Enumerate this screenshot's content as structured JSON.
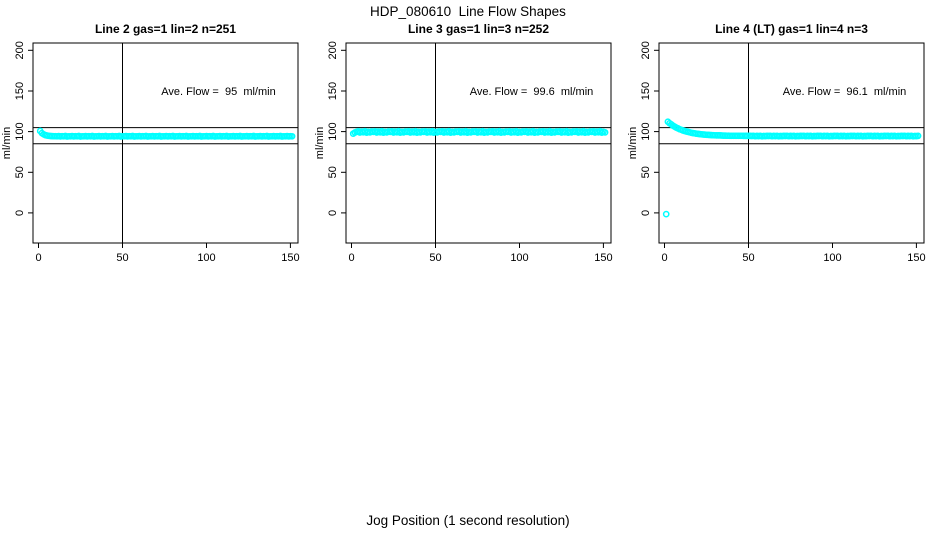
{
  "page": {
    "main_title": "HDP_080610  Line Flow Shapes",
    "x_axis_label": "Jog Position (1 second resolution)"
  },
  "chart_data": {
    "type": "scatter",
    "shared": {
      "xlabel": "Jog Position (1 second resolution)",
      "ylabel": "ml/min",
      "x_ticks": [
        0,
        50,
        100,
        150
      ],
      "y_ticks": [
        0,
        50,
        100,
        150,
        200
      ],
      "xlim": [
        -3.3,
        154.5
      ],
      "ylim": [
        -37,
        209
      ],
      "hlines": [
        85,
        105
      ],
      "vlines": [
        50
      ],
      "grid": false,
      "legend": "none",
      "marker": "open-circle",
      "point_color": "#00ffff",
      "frame_color": "#000000",
      "background_color": "#ffffff"
    },
    "panels": [
      {
        "title": "Line 2 gas=1 lin=2 n=251",
        "annotation": "Ave. Flow =  95  ml/min",
        "ave_flow": 95,
        "x_start": 1,
        "x_step": 1,
        "y": [
          100.8,
          98.2,
          96.7,
          95.7,
          95.2,
          94.8,
          94.6,
          94.5,
          94.4,
          94.4,
          94.3,
          94.5,
          94.1,
          94.4,
          94.2,
          94.6,
          94.0,
          94.3,
          94.3,
          94.5,
          94.1,
          94.4,
          94.2,
          94.6,
          94.0,
          94.3,
          94.3,
          94.5,
          94.1,
          94.4,
          94.2,
          94.6,
          94.0,
          94.3,
          94.3,
          94.5,
          94.1,
          94.4,
          94.2,
          94.6,
          94.0,
          94.3,
          94.3,
          94.5,
          94.1,
          94.4,
          94.2,
          94.6,
          94.0,
          94.3,
          94.3,
          94.5,
          94.1,
          94.4,
          94.2,
          94.6,
          94.0,
          94.3,
          94.3,
          94.5,
          94.1,
          94.4,
          94.2,
          94.6,
          94.0,
          94.3,
          94.3,
          94.5,
          94.1,
          94.4,
          94.2,
          94.6,
          94.0,
          94.3,
          94.3,
          94.5,
          94.1,
          94.4,
          94.2,
          94.6,
          94.0,
          94.3,
          94.3,
          94.5,
          94.1,
          94.4,
          94.2,
          94.6,
          94.0,
          94.3,
          94.3,
          94.5,
          94.1,
          94.4,
          94.2,
          94.6,
          94.0,
          94.3,
          94.3,
          94.5,
          94.1,
          94.4,
          94.2,
          94.6,
          94.0,
          94.3,
          94.3,
          94.5,
          94.1,
          94.4,
          94.2,
          94.6,
          94.0,
          94.3,
          94.3,
          94.5,
          94.1,
          94.4,
          94.2,
          94.6,
          94.0,
          94.3,
          94.3,
          94.5,
          94.1,
          94.4,
          94.2,
          94.6,
          94.0,
          94.3,
          94.3,
          94.5,
          94.1,
          94.4,
          94.2,
          94.6,
          94.0,
          94.3,
          94.3,
          94.5,
          94.1,
          94.4,
          94.2,
          94.6,
          94.0,
          94.3,
          94.3,
          94.5,
          94.1,
          94.4,
          94.2
        ]
      },
      {
        "title": "Line 3 gas=1 lin=3 n=252",
        "annotation": "Ave. Flow =  99.6  ml/min",
        "ave_flow": 99.6,
        "x_start": 1,
        "x_step": 1,
        "y": [
          97.6,
          98.9,
          99.6,
          100.3,
          98.9,
          100.0,
          99.2,
          100.5,
          98.8,
          99.8,
          99.0,
          100.1,
          99.6,
          100.3,
          98.9,
          100.0,
          99.2,
          100.5,
          98.8,
          99.8,
          99.0,
          100.1,
          99.6,
          100.3,
          98.9,
          100.0,
          99.2,
          100.5,
          98.8,
          99.8,
          99.0,
          100.1,
          99.6,
          100.3,
          98.9,
          100.0,
          99.2,
          100.5,
          98.8,
          99.8,
          99.0,
          100.1,
          99.6,
          100.3,
          98.9,
          100.0,
          99.2,
          100.5,
          98.8,
          99.8,
          99.0,
          100.1,
          99.6,
          100.3,
          98.9,
          100.0,
          99.2,
          100.5,
          98.8,
          99.8,
          99.0,
          100.1,
          99.6,
          100.3,
          98.9,
          100.0,
          99.2,
          100.5,
          98.8,
          99.8,
          99.0,
          100.1,
          99.6,
          100.3,
          98.9,
          100.0,
          99.2,
          100.5,
          98.8,
          99.8,
          99.0,
          100.1,
          99.6,
          100.3,
          98.9,
          100.0,
          99.2,
          100.5,
          98.8,
          99.8,
          99.0,
          100.1,
          99.6,
          100.3,
          98.9,
          100.0,
          99.2,
          100.5,
          98.8,
          99.8,
          99.0,
          100.1,
          99.6,
          100.3,
          98.9,
          100.0,
          99.2,
          100.5,
          98.8,
          99.8,
          99.0,
          100.1,
          99.6,
          100.3,
          98.9,
          100.0,
          99.2,
          100.5,
          98.8,
          99.8,
          99.0,
          100.1,
          99.6,
          100.3,
          98.9,
          100.0,
          99.2,
          100.5,
          98.8,
          99.8,
          99.0,
          100.1,
          99.6,
          100.3,
          98.9,
          100.0,
          99.2,
          100.5,
          98.8,
          99.8,
          99.0,
          100.1,
          99.6,
          100.3,
          98.9,
          100.0,
          99.2,
          100.5,
          98.8,
          99.8,
          99.0
        ]
      },
      {
        "title": "Line 4 (LT) gas=1 lin=4 n=3",
        "annotation": "Ave. Flow =  96.1  ml/min",
        "ave_flow": 96.1,
        "x_start": 1,
        "x_step": 1,
        "y": [
          -1.5,
          112.2,
          110.4,
          108.9,
          107.4,
          106.2,
          105.0,
          104.0,
          103.0,
          102.2,
          101.4,
          100.7,
          100.1,
          99.6,
          99.1,
          98.6,
          98.2,
          97.9,
          97.5,
          97.2,
          96.9,
          96.7,
          96.5,
          96.3,
          96.1,
          96.0,
          95.8,
          95.7,
          95.6,
          95.5,
          95.4,
          95.3,
          95.3,
          95.2,
          95.1,
          95.1,
          95.0,
          95.0,
          94.9,
          94.9,
          94.9,
          94.9,
          94.8,
          94.8,
          94.8,
          94.8,
          94.7,
          94.7,
          94.7,
          94.7,
          94.7,
          94.6,
          94.8,
          94.4,
          94.7,
          94.5,
          94.9,
          94.3,
          94.6,
          94.5,
          94.7,
          94.6,
          94.8,
          94.4,
          94.7,
          94.5,
          94.9,
          94.3,
          94.6,
          94.5,
          94.7,
          94.6,
          94.8,
          94.4,
          94.7,
          94.5,
          94.9,
          94.3,
          94.6,
          94.5,
          94.7,
          94.6,
          94.8,
          94.4,
          94.7,
          94.5,
          94.9,
          94.3,
          94.6,
          94.5,
          94.7,
          94.6,
          94.8,
          94.4,
          94.7,
          94.5,
          94.9,
          94.3,
          94.6,
          94.5,
          94.7,
          94.6,
          94.8,
          94.4,
          94.7,
          94.5,
          94.9,
          94.3,
          94.6,
          94.5,
          94.7,
          94.6,
          94.8,
          94.4,
          94.7,
          94.5,
          94.9,
          94.3,
          94.6,
          94.5,
          94.7,
          94.6,
          94.8,
          94.4,
          94.7,
          94.5,
          94.9,
          94.3,
          94.6,
          94.5,
          94.7,
          94.6,
          94.8,
          94.4,
          94.7,
          94.5,
          94.9,
          94.3,
          94.6,
          94.5,
          94.7,
          94.6,
          94.8,
          94.4,
          94.7,
          94.5,
          94.9,
          94.3,
          94.6,
          94.5,
          94.7
        ]
      }
    ]
  }
}
